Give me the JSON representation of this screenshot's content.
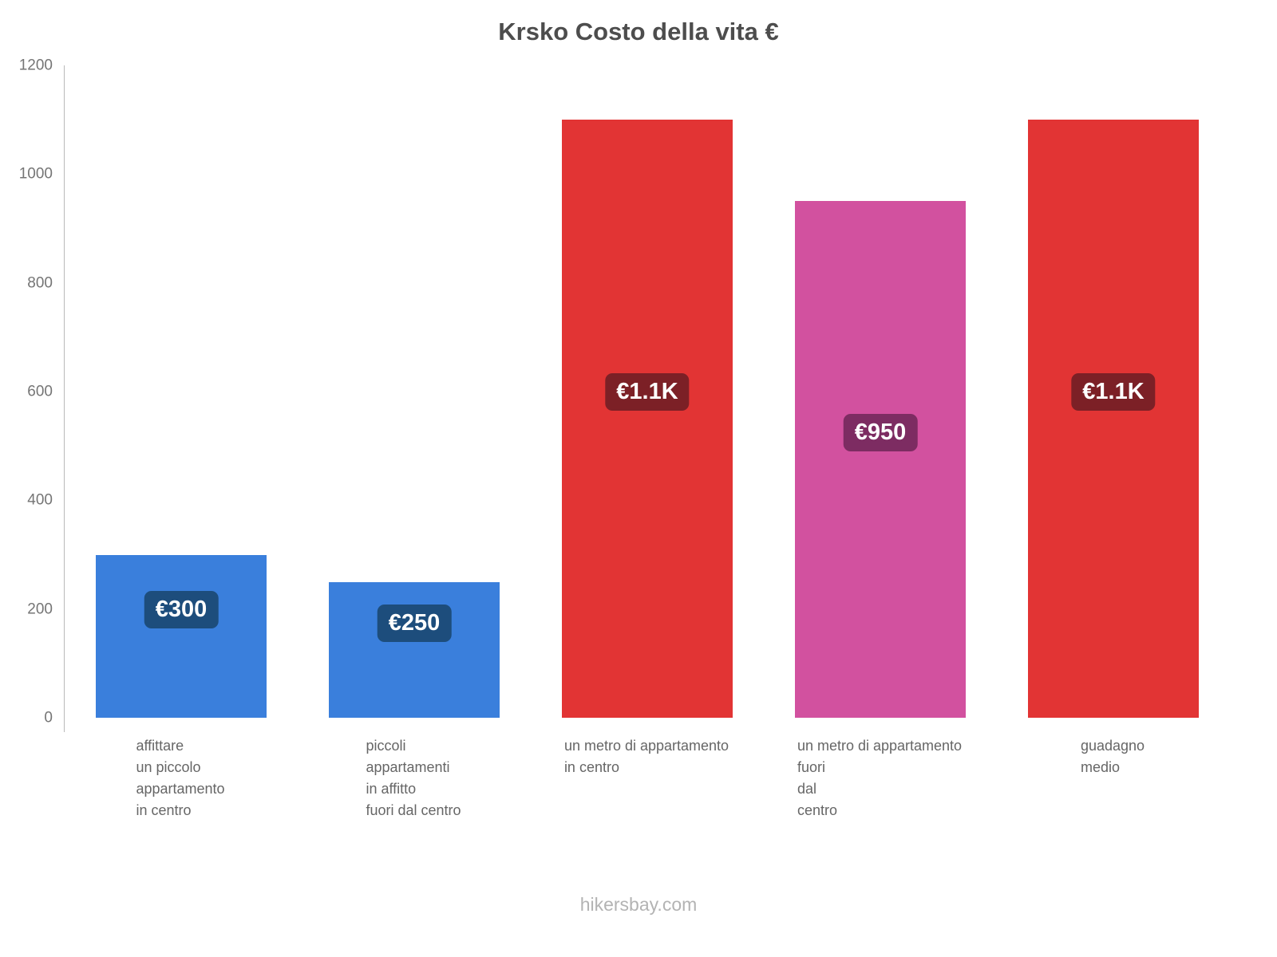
{
  "title": "Krsko Costo della vita €",
  "footer": "hikersbay.com",
  "colors": {
    "title": "#4d4d4d",
    "tick": "#757575",
    "x_label": "#666666",
    "footer": "#b3b3b3",
    "axis": "#b9b9b9",
    "blue_bar": "#3a7fdc",
    "red_bar": "#e23434",
    "pink_bar": "#d2519f",
    "blue_badge": "#1d4d7c",
    "red_badge": "#7c2026",
    "pink_badge": "#7d2c62"
  },
  "chart_data": {
    "type": "bar",
    "title": "Krsko Costo della vita €",
    "currency": "€",
    "categories": [
      "affittare un piccolo appartamento in centro",
      "piccoli appartamenti in affitto fuori dal centro",
      "un metro di appartamento in centro",
      "un metro di appartamento fuori dal centro",
      "guadagno medio"
    ],
    "category_lines": [
      [
        "affittare",
        "un piccolo",
        "appartamento",
        "in centro"
      ],
      [
        "piccoli",
        "appartamenti",
        "in affitto",
        "fuori dal centro"
      ],
      [
        "un metro di appartamento",
        "in centro"
      ],
      [
        "un metro di appartamento",
        "fuori",
        "dal",
        "centro"
      ],
      [
        "guadagno",
        "medio"
      ]
    ],
    "values": [
      300,
      250,
      1100,
      950,
      1100
    ],
    "value_labels": [
      "€300",
      "€250",
      "€1.1K",
      "€950",
      "€1.1K"
    ],
    "bar_colors": [
      "#3a7fdc",
      "#3a7fdc",
      "#e23434",
      "#d2519f",
      "#e23434"
    ],
    "badge_colors": [
      "#1d4d7c",
      "#1d4d7c",
      "#7c2026",
      "#7d2c62",
      "#7c2026"
    ],
    "xlabel": "",
    "ylabel": "",
    "ylim": [
      0,
      1200
    ],
    "yticks": [
      0,
      200,
      400,
      600,
      800,
      1000,
      1200
    ],
    "grid": false,
    "legend_position": "none"
  }
}
